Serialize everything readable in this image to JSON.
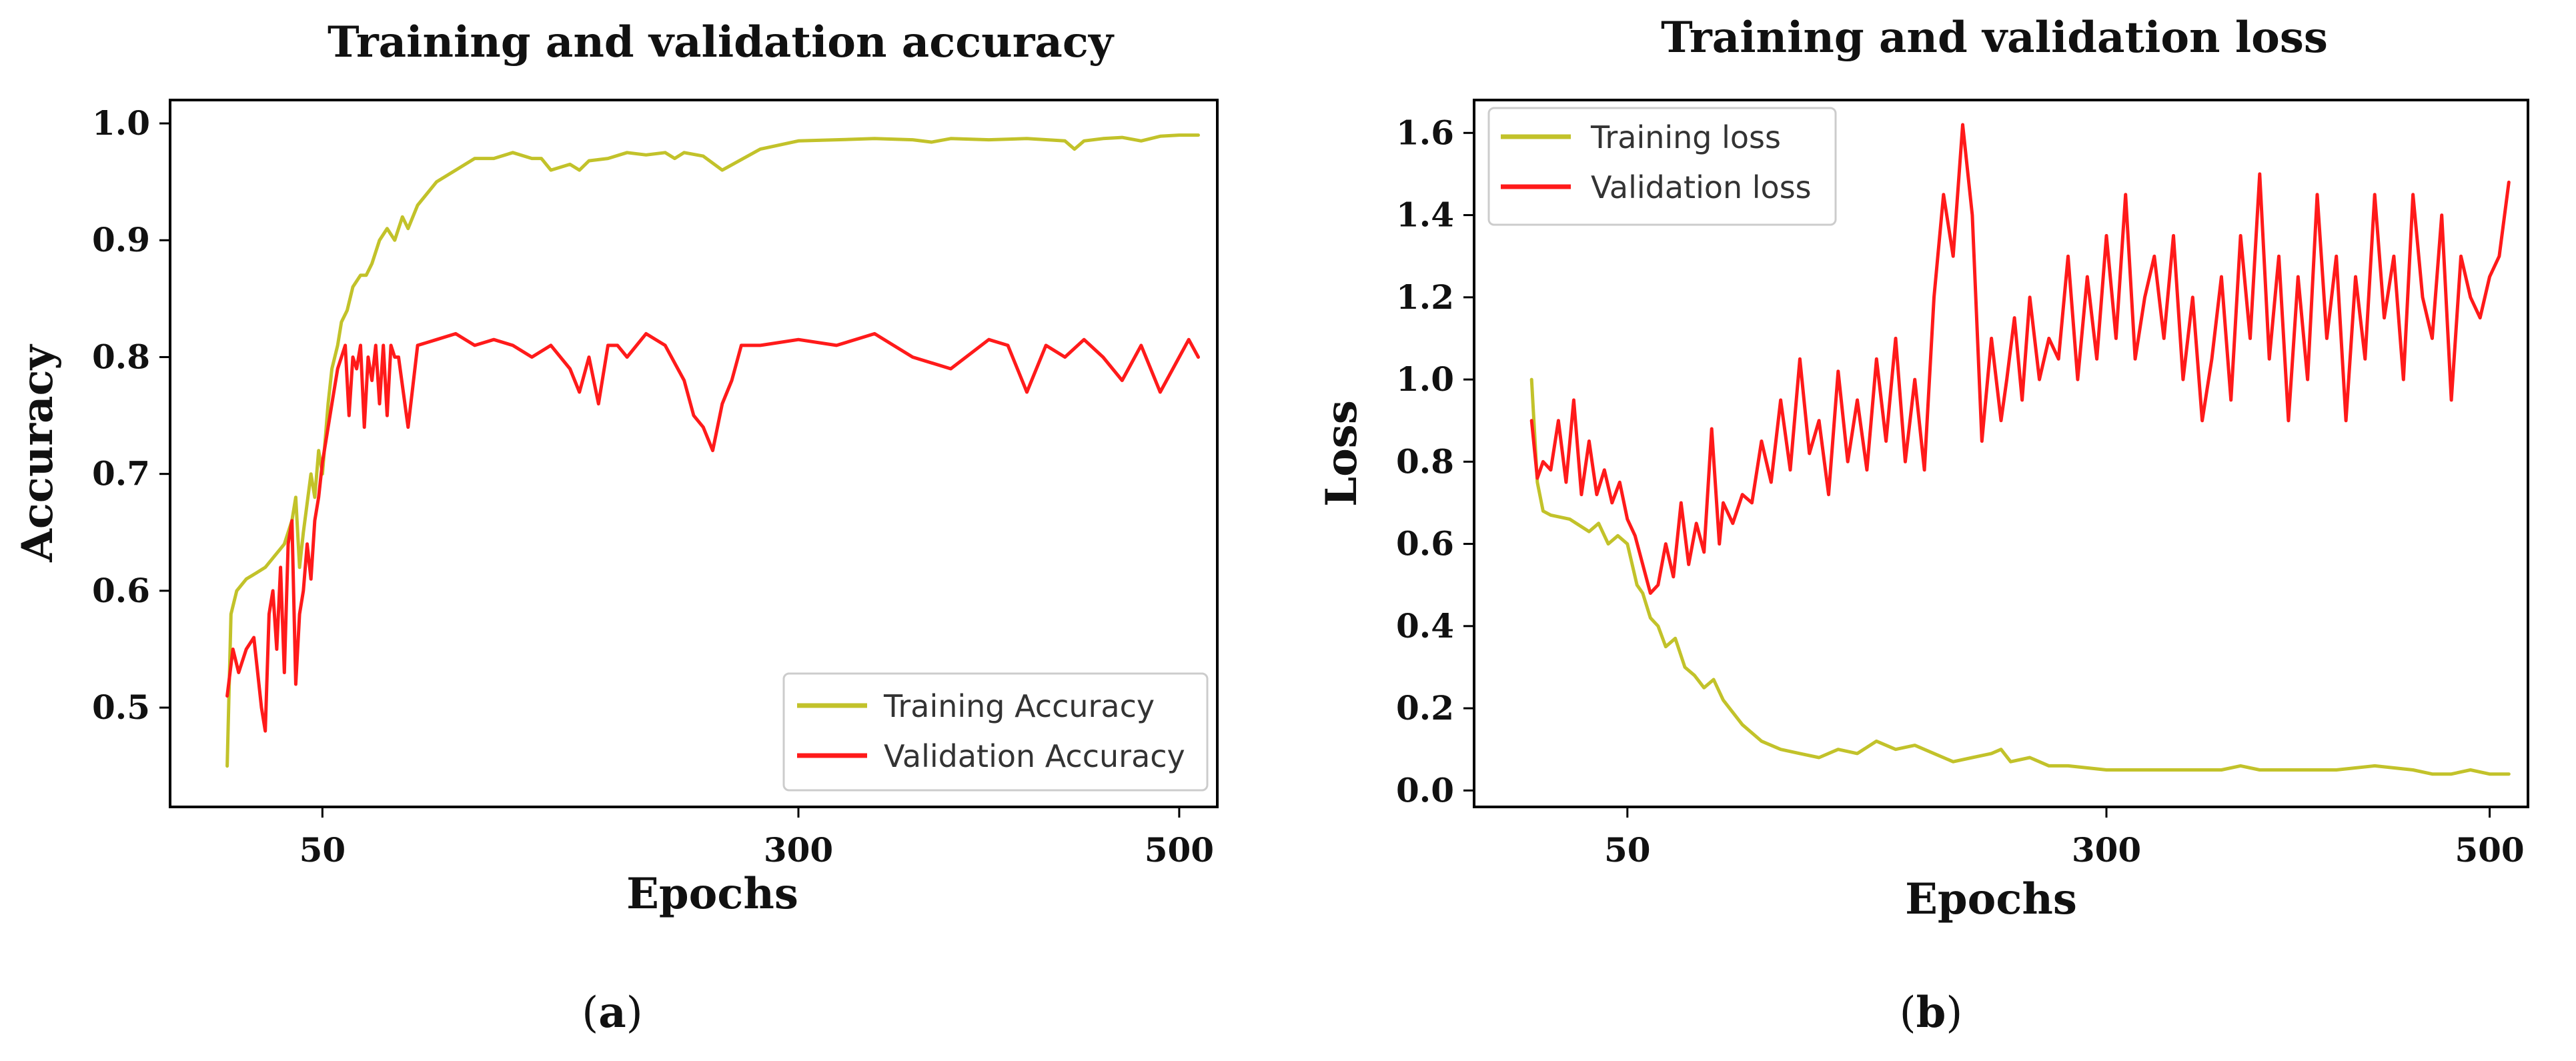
{
  "figure": {
    "panels": [
      {
        "id": "a",
        "label_open": "(",
        "label_letter": "a",
        "label_close": ")",
        "legend_position": "lower-right"
      },
      {
        "id": "b",
        "label_open": "(",
        "label_letter": "b",
        "label_close": ")",
        "legend_position": "upper-left"
      }
    ]
  },
  "colors": {
    "training": "#c2c22a",
    "validation": "#ff1a1a"
  },
  "chart_data": [
    {
      "type": "line",
      "title": "Training and validation accuracy",
      "xlabel": "Epochs",
      "ylabel": "Accuracy",
      "xlim": [
        -30,
        520
      ],
      "ylim": [
        0.415,
        1.02
      ],
      "xticks": [
        50,
        300,
        500
      ],
      "xtick_labels": [
        "50",
        "300",
        "500"
      ],
      "yticks": [
        0.5,
        0.6,
        0.7,
        0.8,
        0.9,
        1.0
      ],
      "ytick_labels": [
        "0.5",
        "0.6",
        "0.7",
        "0.8",
        "0.9",
        "1.0"
      ],
      "grid": false,
      "series": [
        {
          "name": "Training Accuracy",
          "color": "#c2c22a",
          "x": [
            0,
            2,
            5,
            10,
            15,
            20,
            25,
            30,
            34,
            36,
            38,
            40,
            44,
            46,
            48,
            50,
            53,
            55,
            58,
            60,
            63,
            66,
            70,
            73,
            76,
            80,
            84,
            88,
            92,
            95,
            100,
            110,
            120,
            130,
            140,
            150,
            160,
            165,
            170,
            180,
            185,
            190,
            200,
            210,
            220,
            230,
            235,
            240,
            250,
            260,
            280,
            300,
            320,
            340,
            360,
            370,
            380,
            400,
            420,
            440,
            445,
            450,
            460,
            470,
            480,
            490,
            500,
            510
          ],
          "values": [
            0.45,
            0.58,
            0.6,
            0.61,
            0.615,
            0.62,
            0.63,
            0.64,
            0.66,
            0.68,
            0.62,
            0.65,
            0.7,
            0.68,
            0.72,
            0.7,
            0.76,
            0.79,
            0.81,
            0.83,
            0.84,
            0.86,
            0.87,
            0.87,
            0.88,
            0.9,
            0.91,
            0.9,
            0.92,
            0.91,
            0.93,
            0.95,
            0.96,
            0.97,
            0.97,
            0.975,
            0.97,
            0.97,
            0.96,
            0.965,
            0.96,
            0.968,
            0.97,
            0.975,
            0.973,
            0.975,
            0.97,
            0.975,
            0.972,
            0.96,
            0.978,
            0.985,
            0.986,
            0.987,
            0.986,
            0.984,
            0.987,
            0.986,
            0.987,
            0.985,
            0.978,
            0.985,
            0.987,
            0.988,
            0.985,
            0.989,
            0.99,
            0.99
          ]
        },
        {
          "name": "Validation Accuracy",
          "color": "#ff1a1a",
          "x": [
            0,
            3,
            6,
            10,
            14,
            18,
            20,
            22,
            24,
            26,
            28,
            30,
            32,
            34,
            36,
            38,
            40,
            42,
            44,
            46,
            48,
            50,
            52,
            55,
            58,
            60,
            62,
            64,
            66,
            68,
            70,
            72,
            74,
            76,
            78,
            80,
            82,
            84,
            86,
            88,
            90,
            95,
            100,
            110,
            120,
            130,
            140,
            150,
            160,
            170,
            180,
            185,
            190,
            195,
            200,
            205,
            210,
            220,
            230,
            240,
            245,
            250,
            255,
            260,
            265,
            270,
            280,
            300,
            320,
            340,
            360,
            380,
            400,
            410,
            420,
            430,
            440,
            450,
            460,
            470,
            480,
            490,
            500,
            505,
            510
          ],
          "values": [
            0.51,
            0.55,
            0.53,
            0.55,
            0.56,
            0.5,
            0.48,
            0.58,
            0.6,
            0.55,
            0.62,
            0.53,
            0.64,
            0.66,
            0.52,
            0.58,
            0.6,
            0.64,
            0.61,
            0.66,
            0.68,
            0.71,
            0.73,
            0.76,
            0.79,
            0.8,
            0.81,
            0.75,
            0.8,
            0.79,
            0.81,
            0.74,
            0.8,
            0.78,
            0.81,
            0.76,
            0.81,
            0.75,
            0.81,
            0.8,
            0.8,
            0.74,
            0.81,
            0.815,
            0.82,
            0.81,
            0.815,
            0.81,
            0.8,
            0.81,
            0.79,
            0.77,
            0.8,
            0.76,
            0.81,
            0.81,
            0.8,
            0.82,
            0.81,
            0.78,
            0.75,
            0.74,
            0.72,
            0.76,
            0.78,
            0.81,
            0.81,
            0.815,
            0.81,
            0.82,
            0.8,
            0.79,
            0.815,
            0.81,
            0.77,
            0.81,
            0.8,
            0.815,
            0.8,
            0.78,
            0.81,
            0.77,
            0.8,
            0.815,
            0.8
          ]
        }
      ]
    },
    {
      "type": "line",
      "title": "Training and validation loss",
      "xlabel": "Epochs",
      "ylabel": "Loss",
      "xlim": [
        -30,
        520
      ],
      "ylim": [
        -0.04,
        1.68
      ],
      "xticks": [
        50,
        300,
        500
      ],
      "xtick_labels": [
        "50",
        "300",
        "500"
      ],
      "yticks": [
        0.0,
        0.2,
        0.4,
        0.6,
        0.8,
        1.0,
        1.2,
        1.4,
        1.6
      ],
      "ytick_labels": [
        "0.0",
        "0.2",
        "0.4",
        "0.6",
        "0.8",
        "1.0",
        "1.2",
        "1.4",
        "1.6"
      ],
      "grid": false,
      "series": [
        {
          "name": "Training loss",
          "color": "#c2c22a",
          "x": [
            0,
            3,
            6,
            10,
            20,
            30,
            35,
            40,
            45,
            50,
            55,
            58,
            62,
            66,
            70,
            75,
            80,
            85,
            90,
            95,
            100,
            110,
            120,
            130,
            140,
            150,
            160,
            170,
            180,
            190,
            200,
            210,
            220,
            230,
            240,
            245,
            250,
            260,
            270,
            280,
            300,
            320,
            340,
            360,
            370,
            380,
            400,
            420,
            440,
            460,
            470,
            480,
            490,
            500,
            510
          ],
          "values": [
            1.0,
            0.75,
            0.68,
            0.67,
            0.66,
            0.63,
            0.65,
            0.6,
            0.62,
            0.6,
            0.5,
            0.48,
            0.42,
            0.4,
            0.35,
            0.37,
            0.3,
            0.28,
            0.25,
            0.27,
            0.22,
            0.16,
            0.12,
            0.1,
            0.09,
            0.08,
            0.1,
            0.09,
            0.12,
            0.1,
            0.11,
            0.09,
            0.07,
            0.08,
            0.09,
            0.1,
            0.07,
            0.08,
            0.06,
            0.06,
            0.05,
            0.05,
            0.05,
            0.05,
            0.06,
            0.05,
            0.05,
            0.05,
            0.06,
            0.05,
            0.04,
            0.04,
            0.05,
            0.04,
            0.04
          ]
        },
        {
          "name": "Validation loss",
          "color": "#ff1a1a",
          "x": [
            0,
            3,
            6,
            10,
            14,
            18,
            22,
            26,
            30,
            34,
            38,
            42,
            46,
            50,
            54,
            58,
            62,
            66,
            70,
            74,
            78,
            82,
            86,
            90,
            94,
            98,
            100,
            105,
            110,
            115,
            120,
            125,
            130,
            135,
            140,
            145,
            150,
            155,
            160,
            165,
            170,
            175,
            180,
            185,
            190,
            195,
            200,
            205,
            210,
            215,
            220,
            225,
            230,
            235,
            240,
            245,
            248,
            252,
            256,
            260,
            265,
            270,
            275,
            280,
            285,
            290,
            295,
            300,
            305,
            310,
            315,
            320,
            325,
            330,
            335,
            340,
            345,
            350,
            355,
            360,
            365,
            370,
            375,
            380,
            385,
            390,
            395,
            400,
            405,
            410,
            415,
            420,
            425,
            430,
            435,
            440,
            445,
            450,
            455,
            460,
            465,
            470,
            475,
            480,
            485,
            490,
            495,
            500,
            505,
            510
          ],
          "values": [
            0.9,
            0.76,
            0.8,
            0.78,
            0.9,
            0.75,
            0.95,
            0.72,
            0.85,
            0.72,
            0.78,
            0.7,
            0.75,
            0.66,
            0.62,
            0.55,
            0.48,
            0.5,
            0.6,
            0.52,
            0.7,
            0.55,
            0.65,
            0.58,
            0.88,
            0.6,
            0.7,
            0.65,
            0.72,
            0.7,
            0.85,
            0.75,
            0.95,
            0.78,
            1.05,
            0.82,
            0.9,
            0.72,
            1.02,
            0.8,
            0.95,
            0.78,
            1.05,
            0.85,
            1.1,
            0.8,
            1.0,
            0.78,
            1.2,
            1.45,
            1.3,
            1.62,
            1.4,
            0.85,
            1.1,
            0.9,
            1.0,
            1.15,
            0.95,
            1.2,
            1.0,
            1.1,
            1.05,
            1.3,
            1.0,
            1.25,
            1.05,
            1.35,
            1.1,
            1.45,
            1.05,
            1.2,
            1.3,
            1.1,
            1.35,
            1.0,
            1.2,
            0.9,
            1.05,
            1.25,
            0.95,
            1.35,
            1.1,
            1.5,
            1.05,
            1.3,
            0.9,
            1.25,
            1.0,
            1.45,
            1.1,
            1.3,
            0.9,
            1.25,
            1.05,
            1.45,
            1.15,
            1.3,
            1.0,
            1.45,
            1.2,
            1.1,
            1.4,
            0.95,
            1.3,
            1.2,
            1.15,
            1.25,
            1.3,
            1.48
          ]
        }
      ]
    }
  ]
}
